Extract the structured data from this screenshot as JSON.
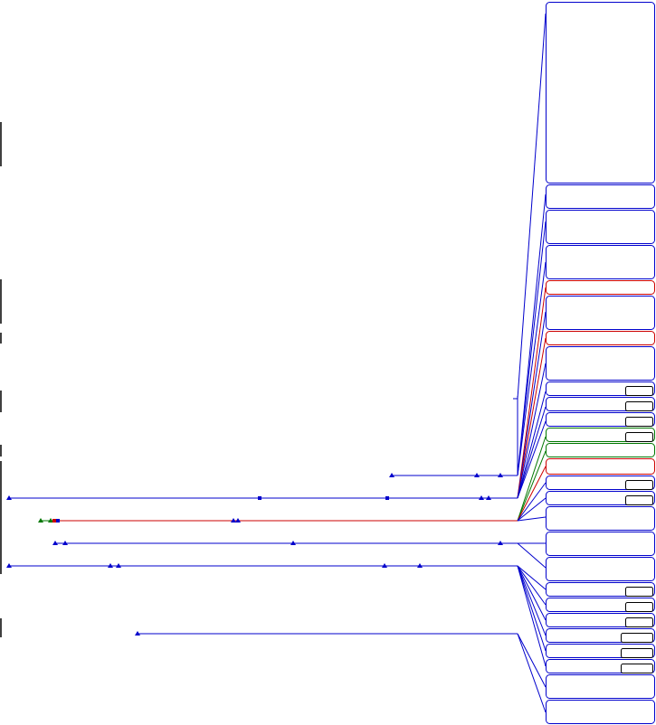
{
  "colors": {
    "background": "#ffffff",
    "primary": "#0000cc",
    "alert": "#cc0000",
    "success": "#007700",
    "neutral": "#000000"
  },
  "panels": [
    {
      "id": "p1",
      "color": "primary",
      "badge": false
    },
    {
      "id": "p2",
      "color": "primary",
      "badge": false
    },
    {
      "id": "p3",
      "color": "primary",
      "badge": false
    },
    {
      "id": "p4",
      "color": "primary",
      "badge": false
    },
    {
      "id": "p5",
      "color": "alert",
      "badge": false
    },
    {
      "id": "p6",
      "color": "primary",
      "badge": false
    },
    {
      "id": "p7",
      "color": "alert",
      "badge": false
    },
    {
      "id": "p8",
      "color": "primary",
      "badge": false
    },
    {
      "id": "p9",
      "color": "primary",
      "badge": true
    },
    {
      "id": "p10",
      "color": "primary",
      "badge": true
    },
    {
      "id": "p11",
      "color": "primary",
      "badge": true
    },
    {
      "id": "p12",
      "color": "success",
      "badge": true
    },
    {
      "id": "p13",
      "color": "success",
      "badge": false
    },
    {
      "id": "p14",
      "color": "alert",
      "badge": false
    },
    {
      "id": "p15",
      "color": "primary",
      "badge": true
    },
    {
      "id": "p16",
      "color": "primary",
      "badge": true
    },
    {
      "id": "p17",
      "color": "primary",
      "badge": false
    },
    {
      "id": "p18",
      "color": "primary",
      "badge": false
    },
    {
      "id": "p19",
      "color": "primary",
      "badge": false
    },
    {
      "id": "p20",
      "color": "primary",
      "badge": true
    },
    {
      "id": "p21",
      "color": "primary",
      "badge": true
    },
    {
      "id": "p22",
      "color": "primary",
      "badge": true
    },
    {
      "id": "p23",
      "color": "primary",
      "badge": true
    },
    {
      "id": "p24",
      "color": "primary",
      "badge": true
    },
    {
      "id": "p25",
      "color": "primary",
      "badge": true
    },
    {
      "id": "p26",
      "color": "primary",
      "badge": false
    },
    {
      "id": "p27",
      "color": "primary",
      "badge": false
    }
  ],
  "tracks": [
    {
      "id": "t1",
      "color": "primary",
      "markers": [
        "triangle",
        "triangle",
        "triangle"
      ]
    },
    {
      "id": "t2",
      "color": "primary",
      "markers": [
        "triangle",
        "square",
        "square",
        "triangle",
        "triangle"
      ]
    },
    {
      "id": "t3",
      "color": "alert",
      "start_color": "success",
      "markers": [
        "triangle",
        "triangle",
        "square",
        "square",
        "triangle",
        "triangle"
      ]
    },
    {
      "id": "t4",
      "color": "primary",
      "markers": [
        "triangle",
        "triangle",
        "triangle",
        "triangle"
      ]
    },
    {
      "id": "t5",
      "color": "primary",
      "markers": [
        "triangle",
        "triangle",
        "triangle",
        "triangle",
        "triangle"
      ]
    },
    {
      "id": "t6",
      "color": "primary",
      "markers": [
        "triangle"
      ]
    }
  ]
}
